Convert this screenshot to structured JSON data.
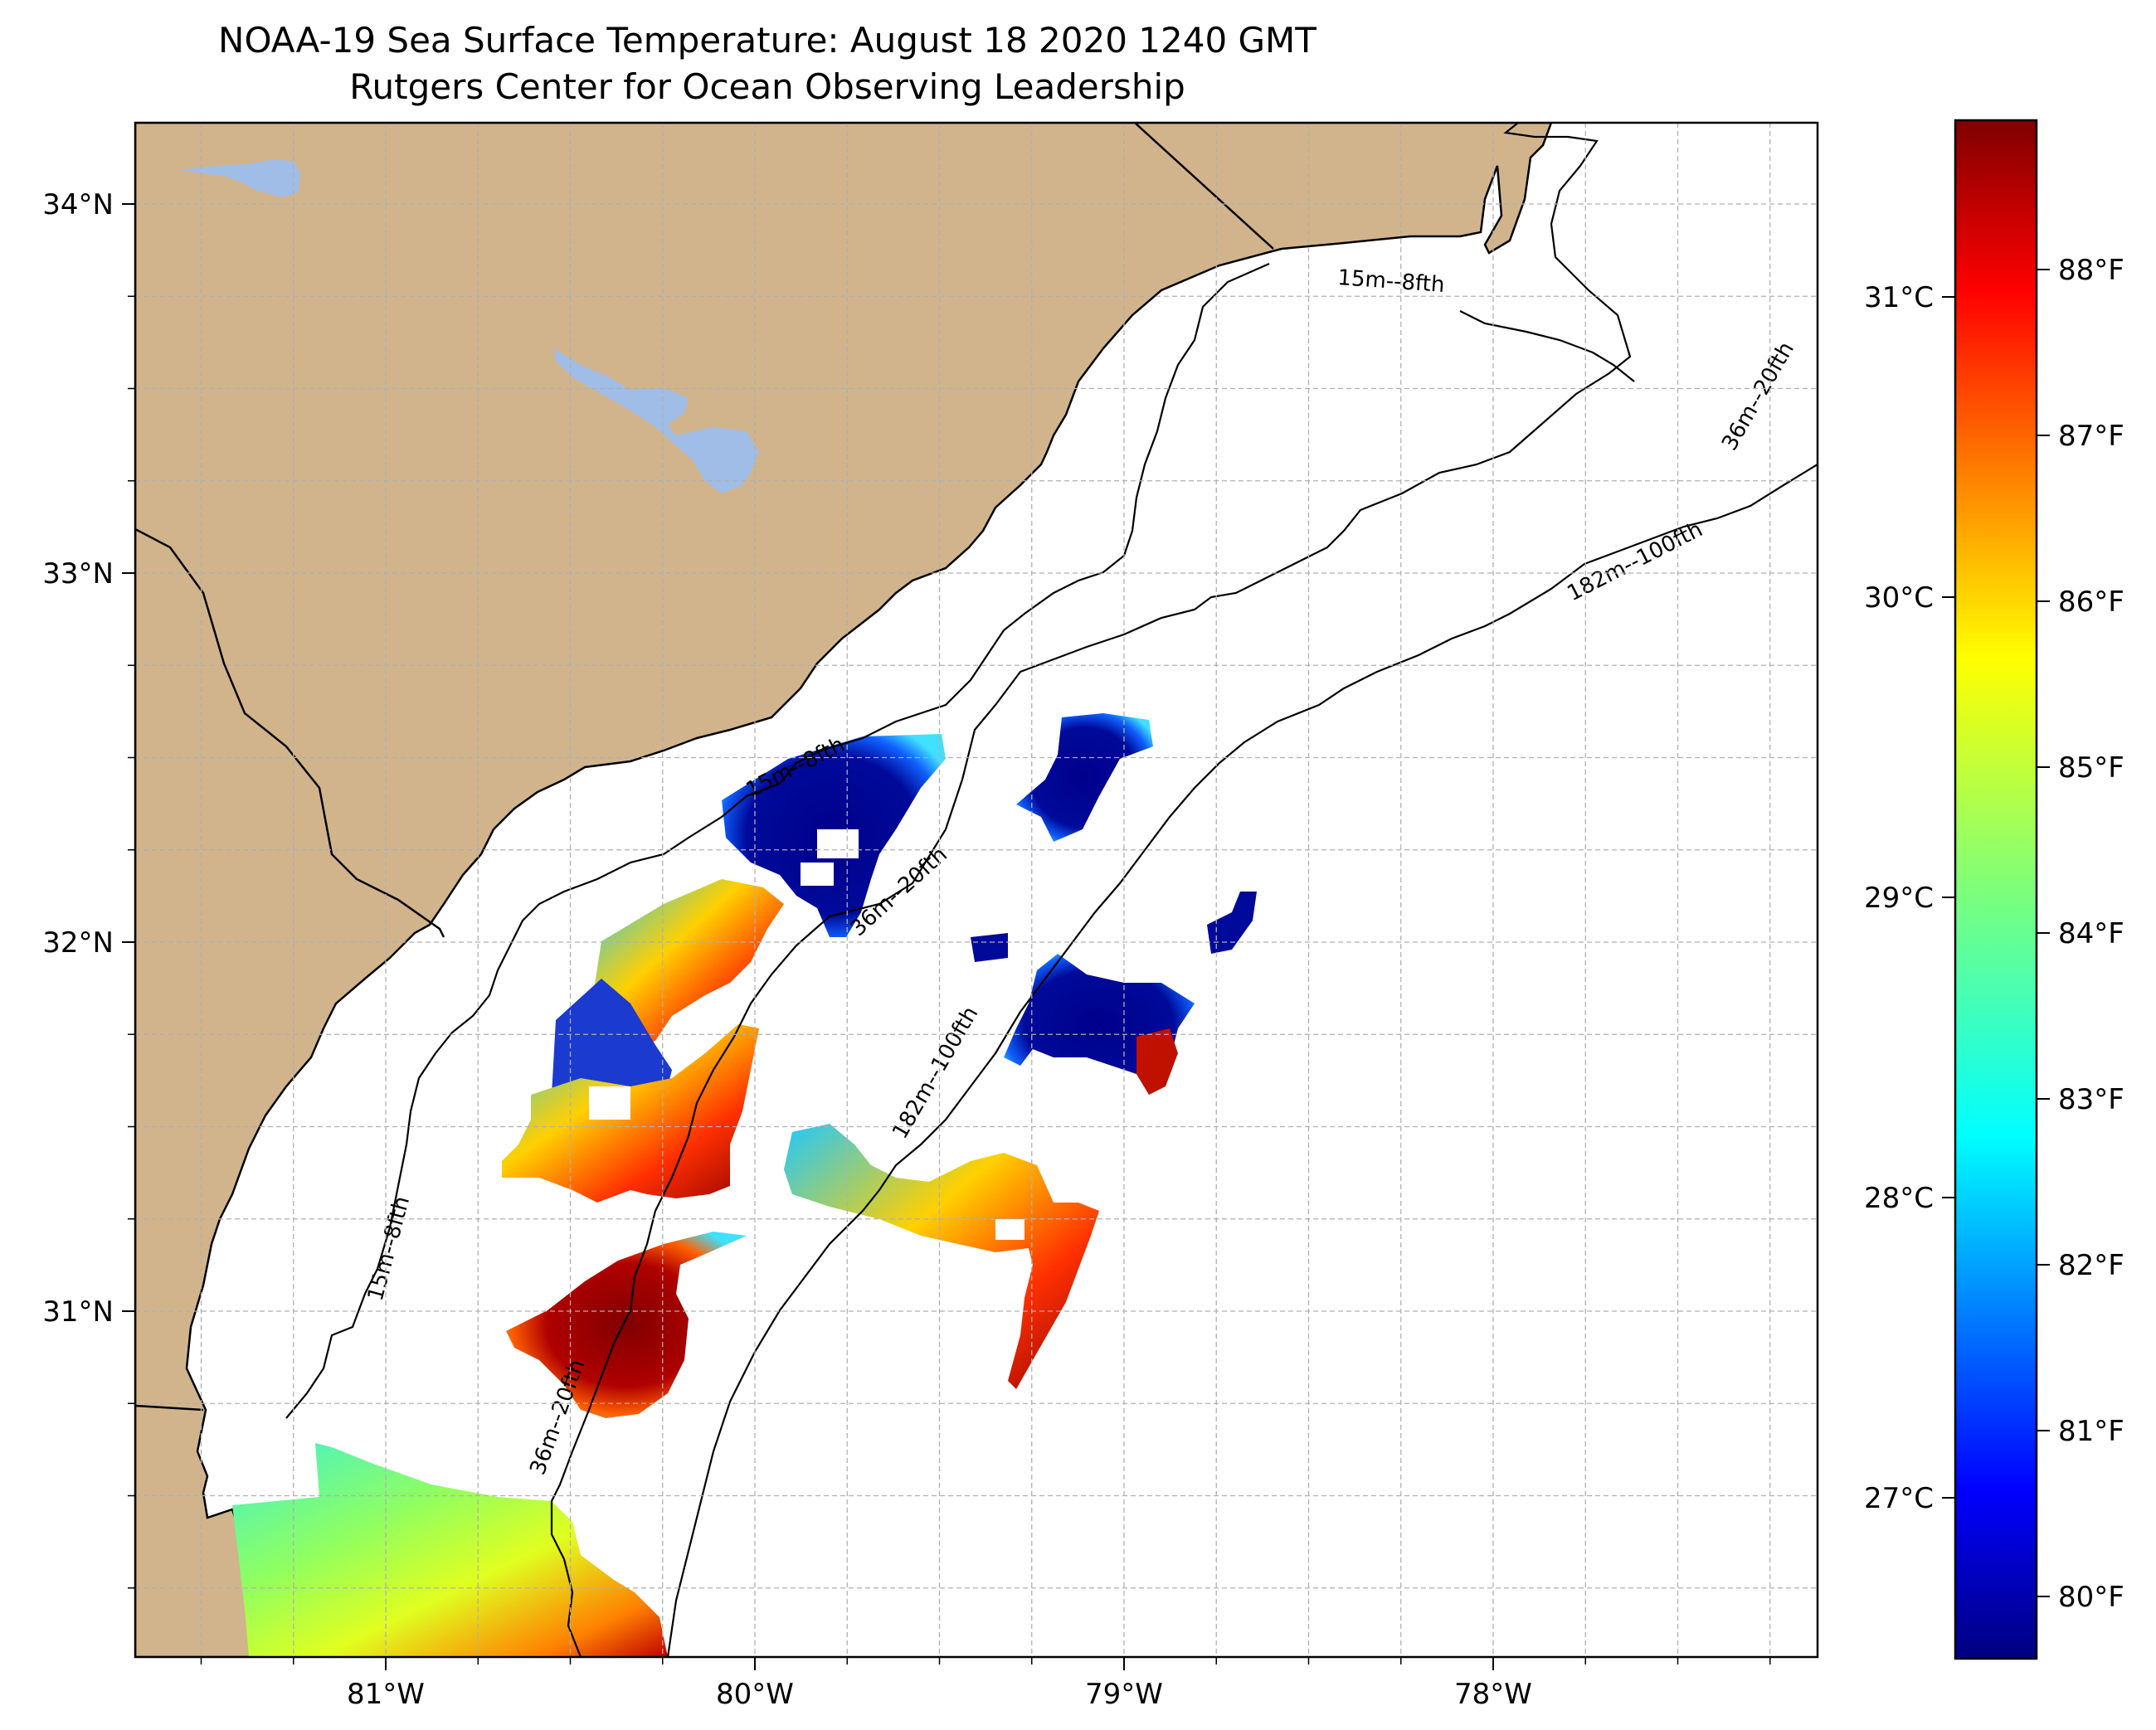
{
  "title": "NOAA-19 Sea Surface Temperature: August 18 2020 1240 GMT",
  "subtitle": "Rutgers Center for Ocean Observing Leadership",
  "map": {
    "lon_ticks": [
      {
        "value": -81,
        "label": "81°W"
      },
      {
        "value": -80,
        "label": "80°W"
      },
      {
        "value": -79,
        "label": "79°W"
      },
      {
        "value": -78,
        "label": "78°W"
      }
    ],
    "lat_ticks": [
      {
        "value": 34,
        "label": "34°N"
      },
      {
        "value": 33,
        "label": "33°N"
      },
      {
        "value": 32,
        "label": "32°N"
      },
      {
        "value": 31,
        "label": "31°N"
      }
    ],
    "colors": {
      "land": "#d2b48c",
      "lakes": "#9fbde6",
      "ocean": "#ffffff",
      "gridlines": "#b0b0b0"
    },
    "grid": true
  },
  "isobaths": {
    "labels": [
      {
        "id": "iso-15-a",
        "text": "15m--8fth"
      },
      {
        "id": "iso-15-b",
        "text": "15m--8fth"
      },
      {
        "id": "iso-15-c",
        "text": "15m--8fth"
      },
      {
        "id": "iso-36-a",
        "text": "36m--20fth"
      },
      {
        "id": "iso-36-b",
        "text": "36m--20fth"
      },
      {
        "id": "iso-36-c",
        "text": "36m--20fth"
      },
      {
        "id": "iso-182-a",
        "text": "182m--100fth"
      },
      {
        "id": "iso-182-b",
        "text": "182m--100fth"
      }
    ]
  },
  "colorbar": {
    "colormap": "jet",
    "celsius_ticks": [
      {
        "value": 27,
        "label": "27°C"
      },
      {
        "value": 28,
        "label": "28°C"
      },
      {
        "value": 29,
        "label": "29°C"
      },
      {
        "value": 30,
        "label": "30°C"
      },
      {
        "value": 31,
        "label": "31°C"
      }
    ],
    "fahrenheit_ticks": [
      {
        "value": 80,
        "label": "80°F"
      },
      {
        "value": 81,
        "label": "81°F"
      },
      {
        "value": 82,
        "label": "82°F"
      },
      {
        "value": 83,
        "label": "83°F"
      },
      {
        "value": 84,
        "label": "84°F"
      },
      {
        "value": 85,
        "label": "85°F"
      },
      {
        "value": 86,
        "label": "86°F"
      },
      {
        "value": 87,
        "label": "87°F"
      },
      {
        "value": 88,
        "label": "88°F"
      }
    ]
  }
}
